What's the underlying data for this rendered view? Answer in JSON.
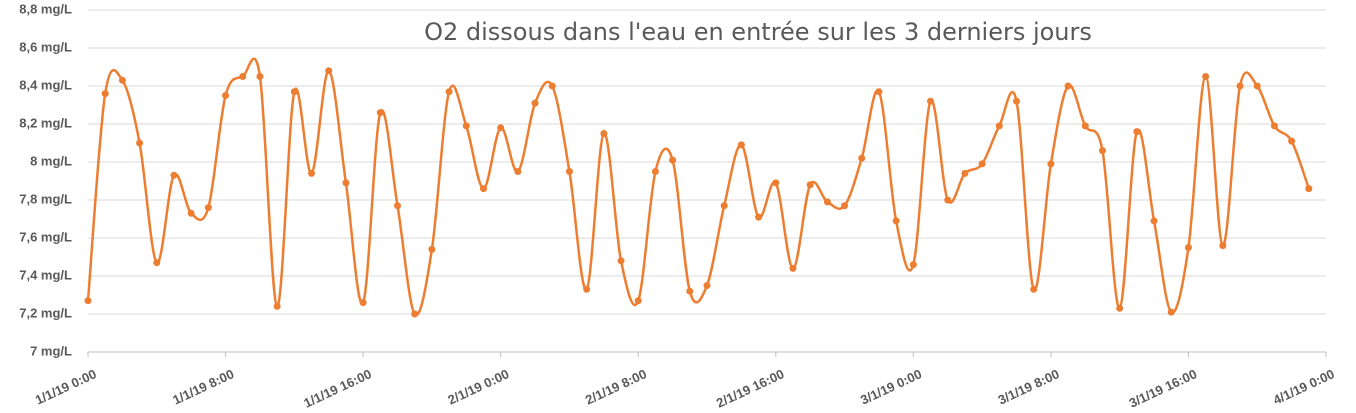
{
  "chart_data": {
    "type": "line",
    "title": "O2 dissous dans l'eau en entrée sur les 3 derniers jours",
    "x": [
      0,
      1,
      2,
      3,
      4,
      5,
      6,
      7,
      8,
      9,
      10,
      11,
      12,
      13,
      14,
      15,
      16,
      17,
      18,
      19,
      20,
      21,
      22,
      23,
      24,
      25,
      26,
      27,
      28,
      29,
      30,
      31,
      32,
      33,
      34,
      35,
      36,
      37,
      38,
      39,
      40,
      41,
      42,
      43,
      44,
      45,
      46,
      47,
      48,
      49,
      50,
      51,
      52,
      53,
      54,
      55,
      56,
      57,
      58,
      59,
      60,
      61,
      62,
      63,
      64,
      65,
      66,
      67,
      68,
      69,
      70,
      71
    ],
    "series": [
      {
        "color": "#ED7D31",
        "values": [
          7.27,
          8.36,
          8.43,
          8.1,
          7.47,
          7.93,
          7.73,
          7.76,
          8.35,
          8.45,
          8.45,
          7.24,
          8.37,
          7.94,
          8.48,
          7.89,
          7.26,
          8.26,
          7.77,
          7.2,
          7.54,
          8.37,
          8.19,
          7.86,
          8.18,
          7.95,
          8.31,
          8.4,
          7.95,
          7.33,
          8.15,
          7.48,
          7.27,
          7.95,
          8.01,
          7.32,
          7.35,
          7.77,
          8.09,
          7.71,
          7.89,
          7.44,
          7.88,
          7.79,
          7.77,
          8.02,
          8.37,
          7.69,
          7.46,
          8.32,
          7.8,
          7.94,
          7.99,
          8.19,
          8.32,
          7.33,
          7.99,
          8.4,
          8.19,
          8.06,
          7.23,
          8.16,
          7.69,
          7.21,
          7.55,
          8.45,
          7.56,
          8.4,
          8.4,
          8.19,
          8.11,
          7.86
        ]
      }
    ],
    "xlim": [
      0,
      72
    ],
    "xticks": [
      {
        "value": 0,
        "label": "1/1/19 0:00"
      },
      {
        "value": 8,
        "label": "1/1/19 8:00"
      },
      {
        "value": 16,
        "label": "1/1/19 16:00"
      },
      {
        "value": 24,
        "label": "2/1/19 0:00"
      },
      {
        "value": 32,
        "label": "2/1/19 8:00"
      },
      {
        "value": 40,
        "label": "2/1/19 16:00"
      },
      {
        "value": 48,
        "label": "3/1/19 0:00"
      },
      {
        "value": 56,
        "label": "3/1/19 8:00"
      },
      {
        "value": 64,
        "label": "3/1/19 16:00"
      },
      {
        "value": 72,
        "label": "4/1/19 0:00"
      }
    ],
    "ylim": [
      7,
      8.8
    ],
    "yticks": [
      {
        "value": 7,
        "label": "7 mg/L"
      },
      {
        "value": 7.2,
        "label": "7,2 mg/L"
      },
      {
        "value": 7.4,
        "label": "7,4 mg/L"
      },
      {
        "value": 7.6,
        "label": "7,6 mg/L"
      },
      {
        "value": 7.8,
        "label": "7,8 mg/L"
      },
      {
        "value": 8,
        "label": "8 mg/L"
      },
      {
        "value": 8.2,
        "label": "8,2 mg/L"
      },
      {
        "value": 8.4,
        "label": "8,4 mg/L"
      },
      {
        "value": 8.6,
        "label": "8,6 mg/L"
      },
      {
        "value": 8.8,
        "label": "8,8 mg/L"
      }
    ],
    "grid": true,
    "smooth": true
  }
}
